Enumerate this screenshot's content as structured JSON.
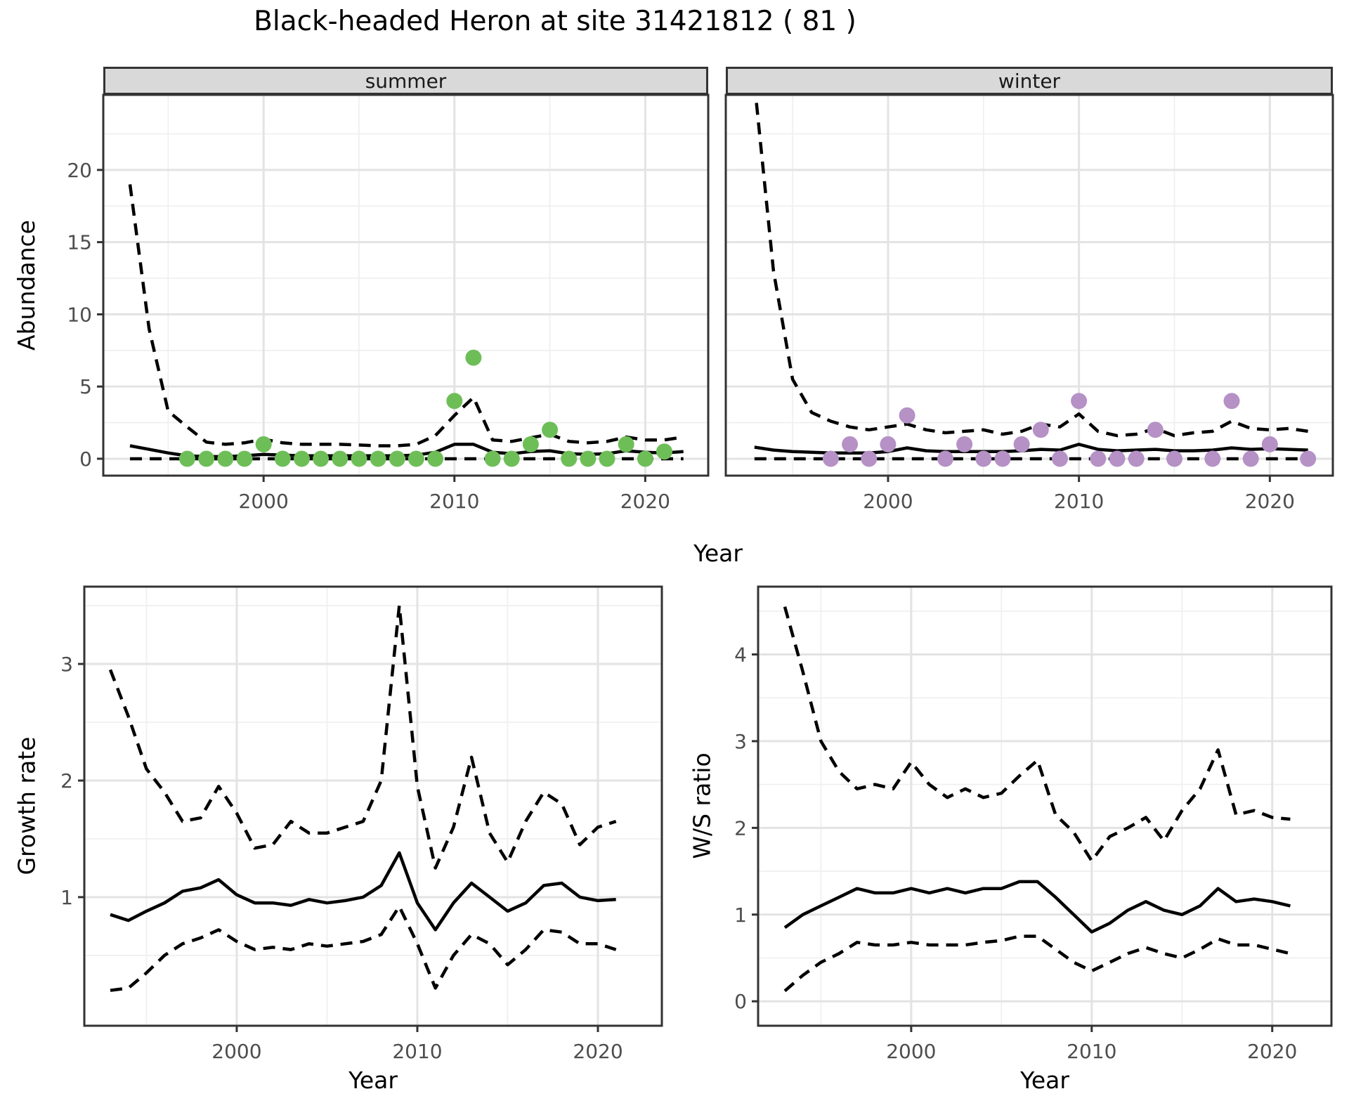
{
  "title": "Black-headed Heron at site 31421812 ( 81 )",
  "accent_colors": {
    "summer_point": "#6EBE58",
    "winter_point": "#B591C6",
    "line": "#000000",
    "grid_major": "#e3e3e3",
    "grid_minor": "#f0f0f0",
    "panel_border": "#333333",
    "strip_bg": "#d9d9d9",
    "tick_text": "#4d4d4d"
  },
  "chart_data": [
    {
      "type": "line",
      "facet_label": "summer",
      "xlabel": "Year",
      "ylabel": "Abundance",
      "x_ticks": [
        2000,
        2010,
        2020
      ],
      "y_ticks": [
        0,
        5,
        10,
        15,
        20
      ],
      "xlim": [
        1991.6,
        2023.3
      ],
      "ylim": [
        -1.17,
        25.2
      ],
      "legend": "none",
      "grid": true,
      "years": [
        1993,
        1994,
        1995,
        1996,
        1997,
        1998,
        1999,
        2000,
        2001,
        2002,
        2003,
        2004,
        2005,
        2006,
        2007,
        2008,
        2009,
        2010,
        2011,
        2012,
        2013,
        2014,
        2015,
        2016,
        2017,
        2018,
        2019,
        2020,
        2021,
        2022
      ],
      "series": [
        {
          "name": "mean",
          "style": "solid",
          "values": [
            0.9,
            0.65,
            0.4,
            0.2,
            0.15,
            0.15,
            0.2,
            0.3,
            0.25,
            0.2,
            0.2,
            0.2,
            0.2,
            0.2,
            0.2,
            0.25,
            0.45,
            1.0,
            1.0,
            0.45,
            0.35,
            0.5,
            0.55,
            0.35,
            0.3,
            0.35,
            0.55,
            0.45,
            0.4,
            0.5
          ]
        },
        {
          "name": "upper_ci",
          "style": "dashed",
          "values": [
            19,
            9,
            3.3,
            2.2,
            1.15,
            1.0,
            1.1,
            1.35,
            1.1,
            1.0,
            1.0,
            1.0,
            0.95,
            0.9,
            0.9,
            1.0,
            1.6,
            3.0,
            4.25,
            1.3,
            1.2,
            1.45,
            1.7,
            1.2,
            1.1,
            1.2,
            1.5,
            1.3,
            1.3,
            1.5
          ]
        },
        {
          "name": "lower_ci",
          "style": "dashed",
          "values": [
            0,
            0,
            0,
            0,
            0,
            0,
            0,
            0,
            0,
            0,
            0,
            0,
            0,
            0,
            0,
            0,
            0,
            0,
            0,
            0,
            0,
            0,
            0,
            0,
            0,
            0,
            0,
            0,
            0,
            0
          ]
        }
      ],
      "points": {
        "color": "#6EBE58",
        "symbol": "circle",
        "data": [
          [
            1996,
            0
          ],
          [
            1997,
            0
          ],
          [
            1998,
            0
          ],
          [
            1999,
            0
          ],
          [
            2000,
            1
          ],
          [
            2001,
            0
          ],
          [
            2002,
            0
          ],
          [
            2003,
            0
          ],
          [
            2004,
            0
          ],
          [
            2005,
            0
          ],
          [
            2006,
            0
          ],
          [
            2007,
            0
          ],
          [
            2008,
            0
          ],
          [
            2009,
            0
          ],
          [
            2010,
            4
          ],
          [
            2011,
            7
          ],
          [
            2012,
            0
          ],
          [
            2013,
            0
          ],
          [
            2014,
            1
          ],
          [
            2015,
            2
          ],
          [
            2016,
            0
          ],
          [
            2017,
            0
          ],
          [
            2018,
            0
          ],
          [
            2019,
            1
          ],
          [
            2020,
            0
          ],
          [
            2021,
            0.5
          ]
        ]
      }
    },
    {
      "type": "line",
      "facet_label": "winter",
      "xlabel": "Year",
      "ylabel": "Abundance",
      "x_ticks": [
        2000,
        2010,
        2020
      ],
      "y_ticks": [
        0,
        5,
        10,
        15,
        20
      ],
      "xlim": [
        1991.5,
        2023.3
      ],
      "ylim": [
        -1.17,
        25.2
      ],
      "legend": "none",
      "grid": true,
      "years": [
        1993,
        1994,
        1995,
        1996,
        1997,
        1998,
        1999,
        2000,
        2001,
        2002,
        2003,
        2004,
        2005,
        2006,
        2007,
        2008,
        2009,
        2010,
        2011,
        2012,
        2013,
        2014,
        2015,
        2016,
        2017,
        2018,
        2019,
        2020,
        2021,
        2022
      ],
      "series": [
        {
          "name": "mean",
          "style": "solid",
          "values": [
            0.8,
            0.6,
            0.5,
            0.45,
            0.4,
            0.4,
            0.4,
            0.5,
            0.75,
            0.55,
            0.5,
            0.5,
            0.5,
            0.5,
            0.55,
            0.65,
            0.6,
            1.0,
            0.65,
            0.55,
            0.6,
            0.65,
            0.55,
            0.55,
            0.6,
            0.75,
            0.65,
            0.7,
            0.65,
            0.6
          ]
        },
        {
          "name": "upper_ci",
          "style": "dashed",
          "values": [
            26,
            13,
            5.5,
            3.2,
            2.6,
            2.2,
            2.0,
            2.2,
            2.4,
            2.0,
            1.8,
            1.9,
            2.0,
            1.7,
            1.9,
            2.4,
            2.2,
            3.1,
            1.9,
            1.6,
            1.7,
            2.1,
            1.6,
            1.8,
            1.9,
            2.6,
            2.1,
            2.0,
            2.1,
            1.9
          ]
        },
        {
          "name": "lower_ci",
          "style": "dashed",
          "values": [
            0,
            0,
            0,
            0,
            0,
            0,
            0,
            0,
            0,
            0,
            0,
            0,
            0,
            0,
            0,
            0,
            0,
            0,
            0,
            0,
            0,
            0,
            0,
            0,
            0,
            0,
            0,
            0,
            0,
            0
          ]
        }
      ],
      "points": {
        "color": "#B591C6",
        "symbol": "circle",
        "data": [
          [
            1997,
            0
          ],
          [
            1998,
            1
          ],
          [
            1999,
            0
          ],
          [
            2000,
            1
          ],
          [
            2001,
            3
          ],
          [
            2003,
            0
          ],
          [
            2004,
            1
          ],
          [
            2005,
            0
          ],
          [
            2006,
            0
          ],
          [
            2007,
            1
          ],
          [
            2008,
            2
          ],
          [
            2009,
            0
          ],
          [
            2010,
            4
          ],
          [
            2011,
            0
          ],
          [
            2012,
            0
          ],
          [
            2013,
            0
          ],
          [
            2014,
            2
          ],
          [
            2015,
            0
          ],
          [
            2017,
            0
          ],
          [
            2018,
            4
          ],
          [
            2019,
            0
          ],
          [
            2020,
            1
          ],
          [
            2022,
            0
          ]
        ]
      }
    },
    {
      "type": "line",
      "facet_label": "",
      "xlabel": "Year",
      "ylabel": "Growth rate",
      "x_ticks": [
        2000,
        2010,
        2020
      ],
      "y_ticks": [
        1,
        2,
        3
      ],
      "xlim": [
        1991.56,
        2023.54
      ],
      "ylim": [
        -0.103,
        3.663
      ],
      "legend": "none",
      "grid": true,
      "years": [
        1993,
        1994,
        1995,
        1996,
        1997,
        1998,
        1999,
        2000,
        2001,
        2002,
        2003,
        2004,
        2005,
        2006,
        2007,
        2008,
        2009,
        2010,
        2011,
        2012,
        2013,
        2014,
        2015,
        2016,
        2017,
        2018,
        2019,
        2020,
        2021
      ],
      "series": [
        {
          "name": "mean",
          "style": "solid",
          "values": [
            0.85,
            0.8,
            0.88,
            0.95,
            1.05,
            1.08,
            1.15,
            1.02,
            0.95,
            0.95,
            0.93,
            0.98,
            0.95,
            0.97,
            1.0,
            1.1,
            1.38,
            0.95,
            0.72,
            0.95,
            1.12,
            1.0,
            0.88,
            0.95,
            1.1,
            1.12,
            1.0,
            0.97,
            0.98
          ]
        },
        {
          "name": "upper_ci",
          "style": "dashed",
          "values": [
            2.95,
            2.55,
            2.1,
            1.9,
            1.65,
            1.68,
            1.95,
            1.72,
            1.42,
            1.45,
            1.65,
            1.55,
            1.55,
            1.6,
            1.65,
            2.0,
            3.5,
            1.95,
            1.25,
            1.6,
            2.2,
            1.55,
            1.3,
            1.65,
            1.9,
            1.8,
            1.45,
            1.6,
            1.65
          ]
        },
        {
          "name": "lower_ci",
          "style": "dashed",
          "values": [
            0.2,
            0.22,
            0.35,
            0.5,
            0.6,
            0.65,
            0.72,
            0.62,
            0.55,
            0.57,
            0.55,
            0.6,
            0.58,
            0.6,
            0.62,
            0.68,
            0.92,
            0.6,
            0.22,
            0.5,
            0.68,
            0.6,
            0.42,
            0.55,
            0.72,
            0.7,
            0.6,
            0.6,
            0.55
          ]
        }
      ],
      "points": null
    },
    {
      "type": "line",
      "facet_label": "",
      "xlabel": "Year",
      "ylabel": "W/S ratio",
      "x_ticks": [
        2000,
        2010,
        2020
      ],
      "y_ticks": [
        0,
        1,
        2,
        3,
        4
      ],
      "xlim": [
        1991.52,
        2023.28
      ],
      "ylim": [
        -0.282,
        4.782
      ],
      "legend": "none",
      "grid": true,
      "years": [
        1993,
        1994,
        1995,
        1996,
        1997,
        1998,
        1999,
        2000,
        2001,
        2002,
        2003,
        2004,
        2005,
        2006,
        2007,
        2008,
        2009,
        2010,
        2011,
        2012,
        2013,
        2014,
        2015,
        2016,
        2017,
        2018,
        2019,
        2020,
        2021
      ],
      "series": [
        {
          "name": "mean",
          "style": "solid",
          "values": [
            0.85,
            1.0,
            1.1,
            1.2,
            1.3,
            1.25,
            1.25,
            1.3,
            1.25,
            1.3,
            1.25,
            1.3,
            1.3,
            1.38,
            1.38,
            1.2,
            1.0,
            0.8,
            0.9,
            1.05,
            1.15,
            1.05,
            1.0,
            1.1,
            1.3,
            1.15,
            1.18,
            1.15,
            1.1
          ]
        },
        {
          "name": "upper_ci",
          "style": "dashed",
          "values": [
            4.55,
            3.8,
            3.0,
            2.65,
            2.45,
            2.5,
            2.45,
            2.76,
            2.5,
            2.35,
            2.45,
            2.35,
            2.4,
            2.6,
            2.78,
            2.15,
            1.95,
            1.62,
            1.9,
            2.0,
            2.12,
            1.85,
            2.2,
            2.45,
            2.9,
            2.15,
            2.2,
            2.12,
            2.1
          ]
        },
        {
          "name": "lower_ci",
          "style": "dashed",
          "values": [
            0.12,
            0.3,
            0.45,
            0.55,
            0.68,
            0.65,
            0.65,
            0.68,
            0.65,
            0.65,
            0.65,
            0.68,
            0.7,
            0.75,
            0.75,
            0.6,
            0.45,
            0.35,
            0.45,
            0.55,
            0.62,
            0.55,
            0.5,
            0.6,
            0.72,
            0.65,
            0.65,
            0.6,
            0.55
          ]
        }
      ],
      "points": null
    }
  ]
}
